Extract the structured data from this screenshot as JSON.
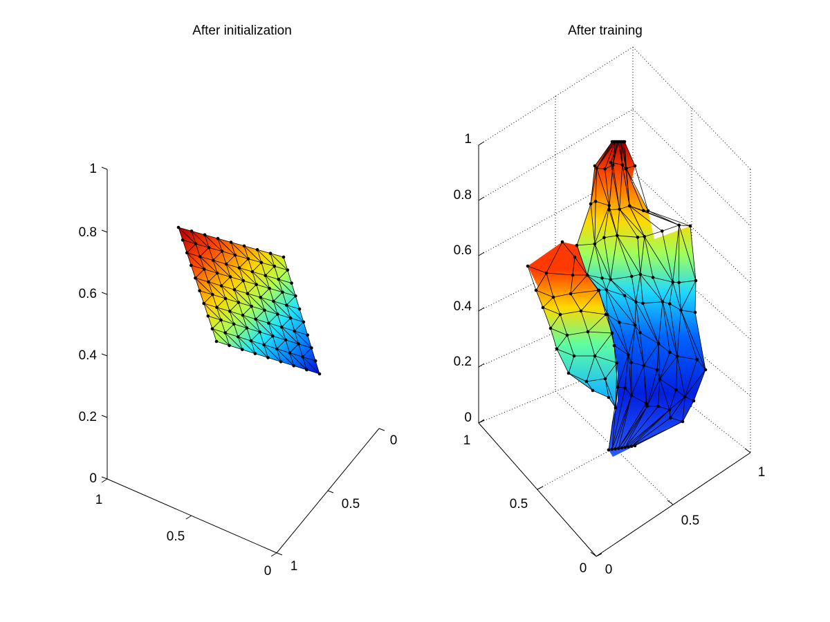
{
  "chart_data": [
    {
      "type": "surface",
      "title": "After initialization",
      "projection": "3d",
      "grid": false,
      "colormap": "jet",
      "zlim": [
        0,
        1
      ],
      "z_ticks": [
        "0",
        "0.2",
        "0.4",
        "0.6",
        "0.8",
        "1"
      ],
      "x_ticks": [
        "0",
        "0.5",
        "1"
      ],
      "y_ticks": [
        "0",
        "0.5",
        "1"
      ],
      "mesh": {
        "rows": 10,
        "cols": 9
      },
      "corners": {
        "top_left": {
          "z": 0.8
        },
        "top_right": {
          "z": 0.71
        },
        "bottom_left": {
          "z": 0.44
        },
        "bottom_right": {
          "z": 0.34
        }
      }
    },
    {
      "type": "surface",
      "title": "After training",
      "projection": "3d",
      "grid": true,
      "colormap": "jet",
      "zlim": [
        0,
        1
      ],
      "z_ticks": [
        "0",
        "0.2",
        "0.4",
        "0.6",
        "0.8",
        "1"
      ],
      "x_ticks": [
        "0",
        "0.5",
        "1"
      ],
      "y_ticks": [
        "0",
        "0.5",
        "1"
      ],
      "mesh": {
        "rows": 10,
        "cols": 9
      }
    }
  ]
}
